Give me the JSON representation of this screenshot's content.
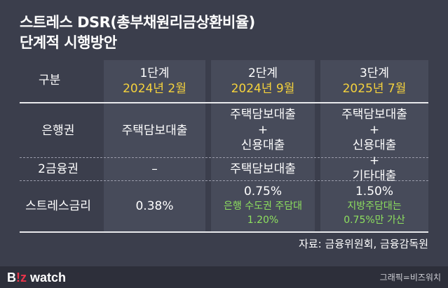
{
  "title": {
    "line1": "스트레스 DSR(총부채원리금상환비율)",
    "line2": "단계적 시행방안"
  },
  "table": {
    "header": {
      "label": "구분",
      "stages": [
        {
          "name": "1단계",
          "date": "2024년 2월"
        },
        {
          "name": "2단계",
          "date": "2024년 9월"
        },
        {
          "name": "3단계",
          "date": "2025년 7월"
        }
      ]
    },
    "rows": {
      "bank": {
        "label": "은행권"
      },
      "secondary": {
        "label": "2금융권"
      },
      "stress_rate": {
        "label": "스트레스금리"
      }
    },
    "cells": {
      "stage1_bank": "주택담보대출",
      "stage1_secondary": "–",
      "stage1_rate": "0.38%",
      "stage2_bank": [
        "주택담보대출",
        "+",
        "신용대출"
      ],
      "stage2_secondary": "주택담보대출",
      "stage2_rate": "0.75%",
      "stage2_rate_note": [
        "은행 수도권 주담대",
        "1.20%"
      ],
      "stage3_all": [
        "주택담보대출",
        "+",
        "신용대출",
        "+",
        "기타대출"
      ],
      "stage3_rate": "1.50%",
      "stage3_rate_note": [
        "지방주담대는",
        "0.75%만 가산"
      ]
    }
  },
  "source": "자료: 금융위원회, 금융감독원",
  "footer": {
    "logo_b": "B",
    "logo_z": "!z",
    "logo_rest": " watch",
    "credit": "그래픽=비즈워치"
  },
  "colors": {
    "background": "#3b3e4c",
    "column_highlight": "#474b5a",
    "date_yellow": "#f5d23c",
    "note_green": "#8ee05f",
    "logo_red": "#e8344a"
  }
}
